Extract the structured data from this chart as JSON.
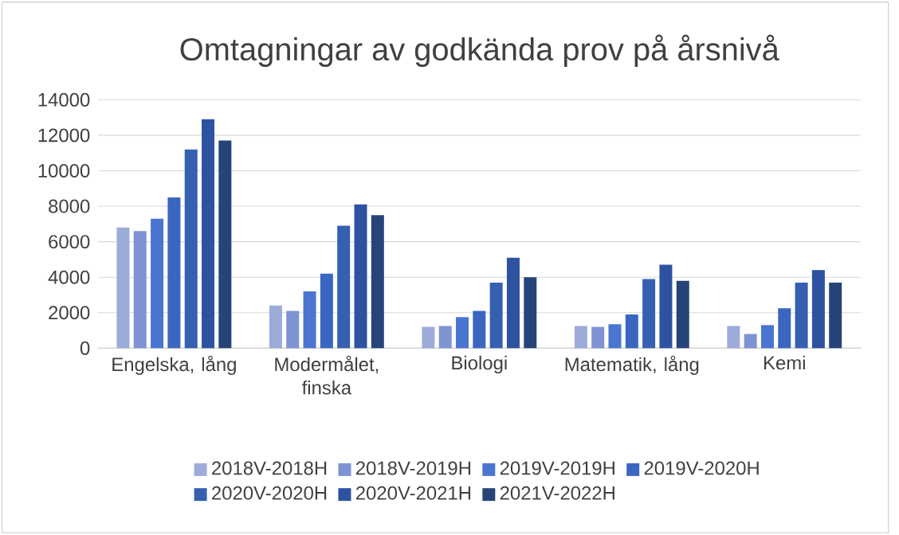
{
  "chart_data": {
    "type": "bar",
    "title": "Omtagningar av godkända prov på årsnivå",
    "categories": [
      "Engelska, lång",
      "Modermålet, finska",
      "Biologi",
      "Matematik, lång",
      "Kemi"
    ],
    "series": [
      {
        "name": "2018V-2018H",
        "color": "#9dabd9",
        "values": [
          6800,
          2400,
          1200,
          1250,
          1250
        ]
      },
      {
        "name": "2018V-2019H",
        "color": "#7f93d3",
        "values": [
          6600,
          2100,
          1250,
          1200,
          800
        ]
      },
      {
        "name": "2019V-2019H",
        "color": "#4a75d0",
        "values": [
          7300,
          3200,
          1750,
          1350,
          1300
        ]
      },
      {
        "name": "2019V-2020H",
        "color": "#3a66c0",
        "values": [
          8500,
          4200,
          2100,
          1900,
          2250
        ]
      },
      {
        "name": "2020V-2020H",
        "color": "#3560b0",
        "values": [
          11200,
          6900,
          3700,
          3900,
          3700
        ]
      },
      {
        "name": "2020V-2021H",
        "color": "#2d52a0",
        "values": [
          12900,
          8100,
          5100,
          4700,
          4400
        ]
      },
      {
        "name": "2021V-2022H",
        "color": "#264478",
        "values": [
          11700,
          7500,
          4000,
          3800,
          3700
        ]
      }
    ],
    "ylim": [
      0,
      14000
    ],
    "yticks": [
      0,
      2000,
      4000,
      6000,
      8000,
      10000,
      12000,
      14000
    ],
    "grid": "y",
    "legend": "bottom"
  }
}
